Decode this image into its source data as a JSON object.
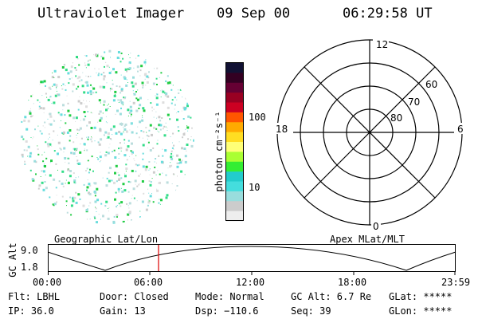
{
  "header": {
    "title": "Ultraviolet Imager",
    "date": "09 Sep 00",
    "time": "06:29:58 UT"
  },
  "colorbar": {
    "unit_label": "photon cm⁻²s⁻¹",
    "ticks": [
      "100",
      "10"
    ],
    "colors": [
      "#111133",
      "#330022",
      "#660033",
      "#990022",
      "#cc0022",
      "#ff5500",
      "#ffaa00",
      "#ffdd22",
      "#ffff77",
      "#aaff33",
      "#33ee33",
      "#22cccc",
      "#44dddd",
      "#99dddd",
      "#cccccc",
      "#eeeeee"
    ]
  },
  "polar": {
    "mlt_labels": {
      "top": "12",
      "left": "18",
      "right": "6",
      "bottom": "0"
    },
    "lat_labels": [
      "60",
      "70",
      "80"
    ]
  },
  "orbit": {
    "left_label": "Geographic Lat/Lon",
    "right_label": "Apex MLat/MLT",
    "axis_title": "GC Alt",
    "y_ticks": [
      "9.0",
      "1.8"
    ],
    "x_ticks": [
      "00:00",
      "06:00",
      "12:00",
      "18:00",
      "23:59"
    ],
    "marker_time": "06:29:58",
    "marker_color": "#dd0000"
  },
  "status": {
    "row1": {
      "flt": "Flt: LBHL",
      "door": "Door: Closed",
      "mode": "Mode: Normal",
      "gcalt": "GC Alt: 6.7 Re",
      "glat": "GLat: *****"
    },
    "row2": {
      "ip": "IP: 36.0",
      "gain": "Gain: 13",
      "dsp": "Dsp: −110.6",
      "seq": "Seq: 39",
      "glon": "GLon: *****"
    }
  }
}
